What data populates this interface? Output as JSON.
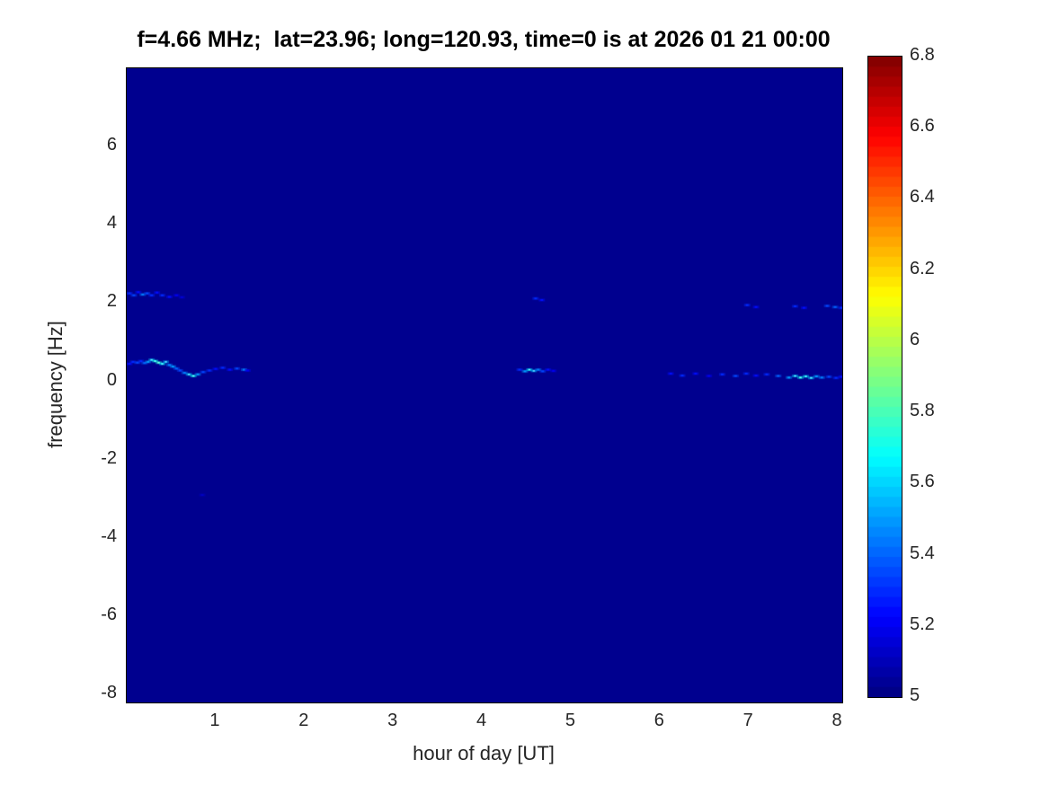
{
  "chart_data": {
    "type": "heatmap",
    "title": "f=4.66 MHz;  lat=23.96; long=120.93, time=0 is at 2026 01 21 00:00",
    "xlabel": "hour of day [UT]",
    "ylabel": "frequency [Hz]",
    "xlim": [
      0,
      8.05
    ],
    "ylim": [
      -8.2,
      8.0
    ],
    "x_ticks": [
      1,
      2,
      3,
      4,
      5,
      6,
      7,
      8
    ],
    "y_ticks": [
      6,
      4,
      2,
      0,
      -2,
      -4,
      -6,
      -8
    ],
    "grid": false,
    "background_value": 5,
    "background_color": "#00008F",
    "colorbar": {
      "min": 5,
      "max": 6.8,
      "ticks": [
        5,
        5.2,
        5.4,
        5.6,
        5.8,
        6,
        6.2,
        6.4,
        6.6,
        6.8
      ],
      "colormap": "jet",
      "steps": 64,
      "position": "right"
    },
    "points": [
      {
        "x": 0.03,
        "y": 0.45,
        "v": 5.25
      },
      {
        "x": 0.07,
        "y": 0.5,
        "v": 5.3
      },
      {
        "x": 0.12,
        "y": 0.48,
        "v": 5.35
      },
      {
        "x": 0.16,
        "y": 0.52,
        "v": 5.3
      },
      {
        "x": 0.2,
        "y": 0.47,
        "v": 5.4
      },
      {
        "x": 0.24,
        "y": 0.5,
        "v": 5.5
      },
      {
        "x": 0.28,
        "y": 0.55,
        "v": 5.6
      },
      {
        "x": 0.32,
        "y": 0.52,
        "v": 5.7
      },
      {
        "x": 0.36,
        "y": 0.48,
        "v": 5.75
      },
      {
        "x": 0.4,
        "y": 0.45,
        "v": 5.65
      },
      {
        "x": 0.44,
        "y": 0.5,
        "v": 5.55
      },
      {
        "x": 0.48,
        "y": 0.42,
        "v": 5.45
      },
      {
        "x": 0.52,
        "y": 0.38,
        "v": 5.5
      },
      {
        "x": 0.56,
        "y": 0.33,
        "v": 5.4
      },
      {
        "x": 0.6,
        "y": 0.28,
        "v": 5.35
      },
      {
        "x": 0.65,
        "y": 0.22,
        "v": 5.45
      },
      {
        "x": 0.7,
        "y": 0.18,
        "v": 5.6
      },
      {
        "x": 0.75,
        "y": 0.14,
        "v": 5.7
      },
      {
        "x": 0.8,
        "y": 0.18,
        "v": 5.5
      },
      {
        "x": 0.86,
        "y": 0.24,
        "v": 5.35
      },
      {
        "x": 0.93,
        "y": 0.28,
        "v": 5.3
      },
      {
        "x": 1.0,
        "y": 0.32,
        "v": 5.25
      },
      {
        "x": 1.08,
        "y": 0.35,
        "v": 5.3
      },
      {
        "x": 1.16,
        "y": 0.3,
        "v": 5.25
      },
      {
        "x": 1.24,
        "y": 0.33,
        "v": 5.35
      },
      {
        "x": 1.32,
        "y": 0.3,
        "v": 5.45
      },
      {
        "x": 1.36,
        "y": 0.28,
        "v": 5.2
      },
      {
        "x": 0.03,
        "y": 2.25,
        "v": 5.3
      },
      {
        "x": 0.08,
        "y": 2.2,
        "v": 5.35
      },
      {
        "x": 0.13,
        "y": 2.28,
        "v": 5.25
      },
      {
        "x": 0.18,
        "y": 2.22,
        "v": 5.45
      },
      {
        "x": 0.23,
        "y": 2.25,
        "v": 5.35
      },
      {
        "x": 0.28,
        "y": 2.2,
        "v": 5.3
      },
      {
        "x": 0.34,
        "y": 2.27,
        "v": 5.25
      },
      {
        "x": 0.4,
        "y": 2.2,
        "v": 5.3
      },
      {
        "x": 0.48,
        "y": 2.16,
        "v": 5.25
      },
      {
        "x": 0.56,
        "y": 2.2,
        "v": 5.2
      },
      {
        "x": 0.62,
        "y": 2.15,
        "v": 5.15
      },
      {
        "x": 0.85,
        "y": -2.9,
        "v": 5.12
      },
      {
        "x": 4.42,
        "y": 0.3,
        "v": 5.3
      },
      {
        "x": 4.48,
        "y": 0.26,
        "v": 5.5
      },
      {
        "x": 4.53,
        "y": 0.3,
        "v": 5.65
      },
      {
        "x": 4.58,
        "y": 0.27,
        "v": 5.55
      },
      {
        "x": 4.63,
        "y": 0.3,
        "v": 5.45
      },
      {
        "x": 4.68,
        "y": 0.26,
        "v": 5.35
      },
      {
        "x": 4.74,
        "y": 0.3,
        "v": 5.25
      },
      {
        "x": 4.8,
        "y": 0.27,
        "v": 5.2
      },
      {
        "x": 4.6,
        "y": 2.12,
        "v": 5.3
      },
      {
        "x": 4.67,
        "y": 2.08,
        "v": 5.25
      },
      {
        "x": 6.12,
        "y": 0.2,
        "v": 5.25
      },
      {
        "x": 6.25,
        "y": 0.15,
        "v": 5.3
      },
      {
        "x": 6.4,
        "y": 0.2,
        "v": 5.25
      },
      {
        "x": 6.55,
        "y": 0.14,
        "v": 5.2
      },
      {
        "x": 6.7,
        "y": 0.18,
        "v": 5.3
      },
      {
        "x": 6.85,
        "y": 0.14,
        "v": 5.35
      },
      {
        "x": 6.97,
        "y": 0.2,
        "v": 5.3
      },
      {
        "x": 7.08,
        "y": 0.15,
        "v": 5.25
      },
      {
        "x": 7.2,
        "y": 0.18,
        "v": 5.3
      },
      {
        "x": 7.33,
        "y": 0.14,
        "v": 5.4
      },
      {
        "x": 7.45,
        "y": 0.1,
        "v": 5.5
      },
      {
        "x": 7.52,
        "y": 0.14,
        "v": 5.6
      },
      {
        "x": 7.58,
        "y": 0.1,
        "v": 5.7
      },
      {
        "x": 7.64,
        "y": 0.13,
        "v": 5.65
      },
      {
        "x": 7.7,
        "y": 0.09,
        "v": 5.6
      },
      {
        "x": 7.76,
        "y": 0.13,
        "v": 5.5
      },
      {
        "x": 7.82,
        "y": 0.1,
        "v": 5.45
      },
      {
        "x": 7.9,
        "y": 0.12,
        "v": 5.35
      },
      {
        "x": 7.98,
        "y": 0.09,
        "v": 5.3
      },
      {
        "x": 8.04,
        "y": 0.12,
        "v": 5.25
      },
      {
        "x": 6.98,
        "y": 1.95,
        "v": 5.3
      },
      {
        "x": 7.08,
        "y": 1.9,
        "v": 5.25
      },
      {
        "x": 7.52,
        "y": 1.92,
        "v": 5.3
      },
      {
        "x": 7.62,
        "y": 1.88,
        "v": 5.25
      },
      {
        "x": 7.88,
        "y": 1.93,
        "v": 5.35
      },
      {
        "x": 7.97,
        "y": 1.9,
        "v": 5.4
      },
      {
        "x": 8.04,
        "y": 1.88,
        "v": 5.3
      }
    ]
  }
}
